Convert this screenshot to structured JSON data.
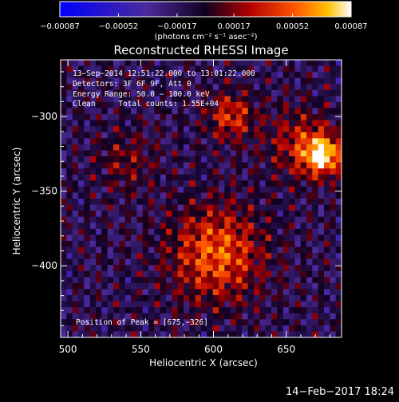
{
  "chart_data": {
    "type": "heatmap",
    "title": "Reconstructed RHESSI Image",
    "xlabel": "Heliocentric X (arcsec)",
    "ylabel": "Heliocentric Y (arcsec)",
    "xlim": [
      495,
      688
    ],
    "ylim": [
      -448,
      -262
    ],
    "x_ticks": [
      500,
      550,
      600,
      650
    ],
    "y_ticks": [
      -300,
      -350,
      -400
    ],
    "x_tick_labels": [
      "500",
      "550",
      "600",
      "650"
    ],
    "y_tick_labels": [
      "−300",
      "−350",
      "−400"
    ],
    "colorbar": {
      "min": -0.00087,
      "max": 0.00087,
      "ticks": [
        -0.00087,
        -0.00052,
        -0.00017,
        0.00017,
        0.00052,
        0.00087
      ],
      "tick_labels": [
        "−0.00087",
        "−0.00052",
        "−0.00017",
        "0.00017",
        "0.00052",
        "0.00087"
      ],
      "unit_label": "(photons cm⁻² s⁻¹ asec⁻²)"
    },
    "annotations": [
      "13−Sep−2014 12:51:22.000 to 13:01:22.000",
      "Detectors: 3F 6F 9F, Att 0",
      "Energy Range: 50.0 − 100.0 keV",
      "Clean     Total counts: 1.55E+04"
    ],
    "peak_label": "Position of Peak = [675,−326]",
    "peak": [
      675,
      -326
    ],
    "grid": false,
    "map_grid": {
      "nx": 48,
      "ny": 46
    },
    "sources": [
      {
        "x": 602,
        "y": -392,
        "sigma": 22,
        "amplitude": 0.00062
      },
      {
        "x": 612,
        "y": -300,
        "sigma": 11,
        "amplitude": 0.0005
      },
      {
        "x": 675,
        "y": -326,
        "sigma": 9,
        "amplitude": 0.00087
      },
      {
        "x": 660,
        "y": -318,
        "sigma": 16,
        "amplitude": 0.0004
      },
      {
        "x": 540,
        "y": -330,
        "sigma": 14,
        "amplitude": 0.00025
      }
    ]
  },
  "footer": {
    "timestamp": "14−Feb−2017 18:24"
  }
}
